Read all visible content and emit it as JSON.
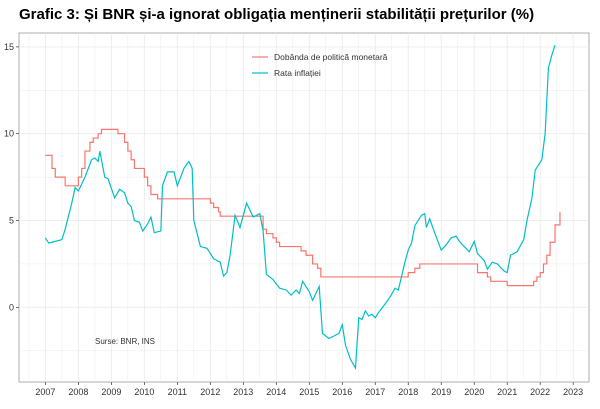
{
  "chart_data": {
    "type": "line",
    "title": "Grafic 3: Și BNR și-a ignorat obligația menținerii stabilității prețurilor (%)",
    "xlabel": "",
    "ylabel": "",
    "xlim": [
      2006.2,
      2023.48
    ],
    "ylim": [
      -4.3,
      15.8
    ],
    "xticks": [
      2007,
      2008,
      2009,
      2010,
      2011,
      2012,
      2013,
      2014,
      2015,
      2016,
      2017,
      2018,
      2019,
      2020,
      2021,
      2022,
      2023
    ],
    "yticks": [
      0,
      5,
      10,
      15
    ],
    "grid": true,
    "legend_placement": "top-center",
    "annotation": "Surse: BNR, INS",
    "series": [
      {
        "name": "Dobânda de politică monetară",
        "color": "#f8766d",
        "step": true,
        "x": [
          2007.0,
          2007.2,
          2007.3,
          2007.6,
          2007.9,
          2008.0,
          2008.1,
          2008.2,
          2008.35,
          2008.45,
          2008.6,
          2008.7,
          2009.1,
          2009.2,
          2009.4,
          2009.5,
          2009.6,
          2009.7,
          2010.0,
          2010.1,
          2010.2,
          2010.4,
          2011.9,
          2012.0,
          2012.1,
          2012.25,
          2012.3,
          2013.5,
          2013.6,
          2013.7,
          2013.9,
          2014.0,
          2014.1,
          2014.6,
          2014.75,
          2014.9,
          2015.1,
          2015.25,
          2015.35,
          2017.9,
          2018.0,
          2018.2,
          2018.35,
          2020.0,
          2020.1,
          2020.4,
          2020.5,
          2021.0,
          2021.8,
          2021.9,
          2022.0,
          2022.1,
          2022.2,
          2022.3,
          2022.45,
          2022.6
        ],
        "y": [
          8.75,
          8.0,
          7.5,
          7.0,
          7.0,
          7.5,
          8.0,
          9.0,
          9.5,
          9.75,
          10.0,
          10.25,
          10.25,
          10.0,
          9.5,
          9.0,
          8.5,
          8.0,
          7.5,
          7.0,
          6.5,
          6.25,
          6.25,
          6.0,
          5.75,
          5.5,
          5.25,
          5.25,
          4.5,
          4.25,
          4.0,
          3.75,
          3.5,
          3.5,
          3.25,
          3.0,
          2.5,
          2.25,
          1.75,
          1.75,
          2.0,
          2.25,
          2.5,
          2.5,
          2.0,
          1.75,
          1.5,
          1.25,
          1.5,
          1.75,
          2.0,
          2.5,
          3.0,
          3.75,
          4.75,
          5.5
        ]
      },
      {
        "name": "Rata inflației",
        "color": "#00bfc4",
        "step": false,
        "x": [
          2007.0,
          2007.1,
          2007.3,
          2007.5,
          2007.6,
          2007.8,
          2007.9,
          2008.0,
          2008.2,
          2008.4,
          2008.5,
          2008.6,
          2008.65,
          2008.8,
          2008.9,
          2009.1,
          2009.25,
          2009.4,
          2009.5,
          2009.6,
          2009.7,
          2009.85,
          2009.95,
          2010.1,
          2010.2,
          2010.3,
          2010.5,
          2010.55,
          2010.7,
          2010.9,
          2011.0,
          2011.2,
          2011.35,
          2011.45,
          2011.5,
          2011.7,
          2011.9,
          2012.1,
          2012.3,
          2012.4,
          2012.5,
          2012.6,
          2012.75,
          2012.9,
          2013.1,
          2013.3,
          2013.5,
          2013.6,
          2013.7,
          2013.9,
          2014.1,
          2014.3,
          2014.45,
          2014.6,
          2014.7,
          2014.8,
          2015.0,
          2015.1,
          2015.2,
          2015.3,
          2015.4,
          2015.6,
          2015.9,
          2016.0,
          2016.1,
          2016.25,
          2016.4,
          2016.5,
          2016.6,
          2016.7,
          2016.8,
          2016.9,
          2017.0,
          2017.1,
          2017.3,
          2017.45,
          2017.6,
          2017.7,
          2017.8,
          2017.9,
          2018.0,
          2018.1,
          2018.2,
          2018.4,
          2018.5,
          2018.55,
          2018.65,
          2018.8,
          2019.0,
          2019.15,
          2019.3,
          2019.45,
          2019.55,
          2019.7,
          2019.85,
          2020.0,
          2020.1,
          2020.3,
          2020.4,
          2020.55,
          2020.7,
          2020.9,
          2021.0,
          2021.1,
          2021.3,
          2021.5,
          2021.6,
          2021.75,
          2021.85,
          2021.95,
          2022.05,
          2022.15,
          2022.25,
          2022.35,
          2022.45
        ],
        "y": [
          4.0,
          3.7,
          3.8,
          3.9,
          4.5,
          6.0,
          6.9,
          6.7,
          7.5,
          8.5,
          8.6,
          8.4,
          9.0,
          7.5,
          7.4,
          6.3,
          6.8,
          6.6,
          6.0,
          5.8,
          5.0,
          4.9,
          4.4,
          4.8,
          5.2,
          4.3,
          4.4,
          7.0,
          7.8,
          7.8,
          7.0,
          8.0,
          8.4,
          8.0,
          5.0,
          3.5,
          3.4,
          2.8,
          2.6,
          1.8,
          2.0,
          3.0,
          5.3,
          4.6,
          6.0,
          5.2,
          5.4,
          4.4,
          1.9,
          1.6,
          1.1,
          1.0,
          0.7,
          1.0,
          0.8,
          1.5,
          0.9,
          0.4,
          0.8,
          1.2,
          -1.5,
          -1.8,
          -1.5,
          -1.0,
          -2.2,
          -3.0,
          -3.5,
          -0.6,
          -0.7,
          -0.2,
          -0.5,
          -0.4,
          -0.6,
          -0.3,
          0.2,
          0.6,
          1.1,
          1.0,
          1.8,
          2.6,
          3.3,
          3.7,
          4.7,
          5.3,
          5.4,
          4.6,
          5.1,
          4.3,
          3.3,
          3.6,
          4.0,
          4.1,
          3.8,
          3.5,
          3.2,
          3.8,
          3.1,
          2.7,
          2.2,
          2.6,
          2.5,
          2.1,
          2.0,
          3.0,
          3.2,
          3.9,
          5.0,
          6.3,
          7.9,
          8.2,
          8.5,
          10.0,
          13.8,
          14.5,
          15.1
        ]
      }
    ]
  }
}
